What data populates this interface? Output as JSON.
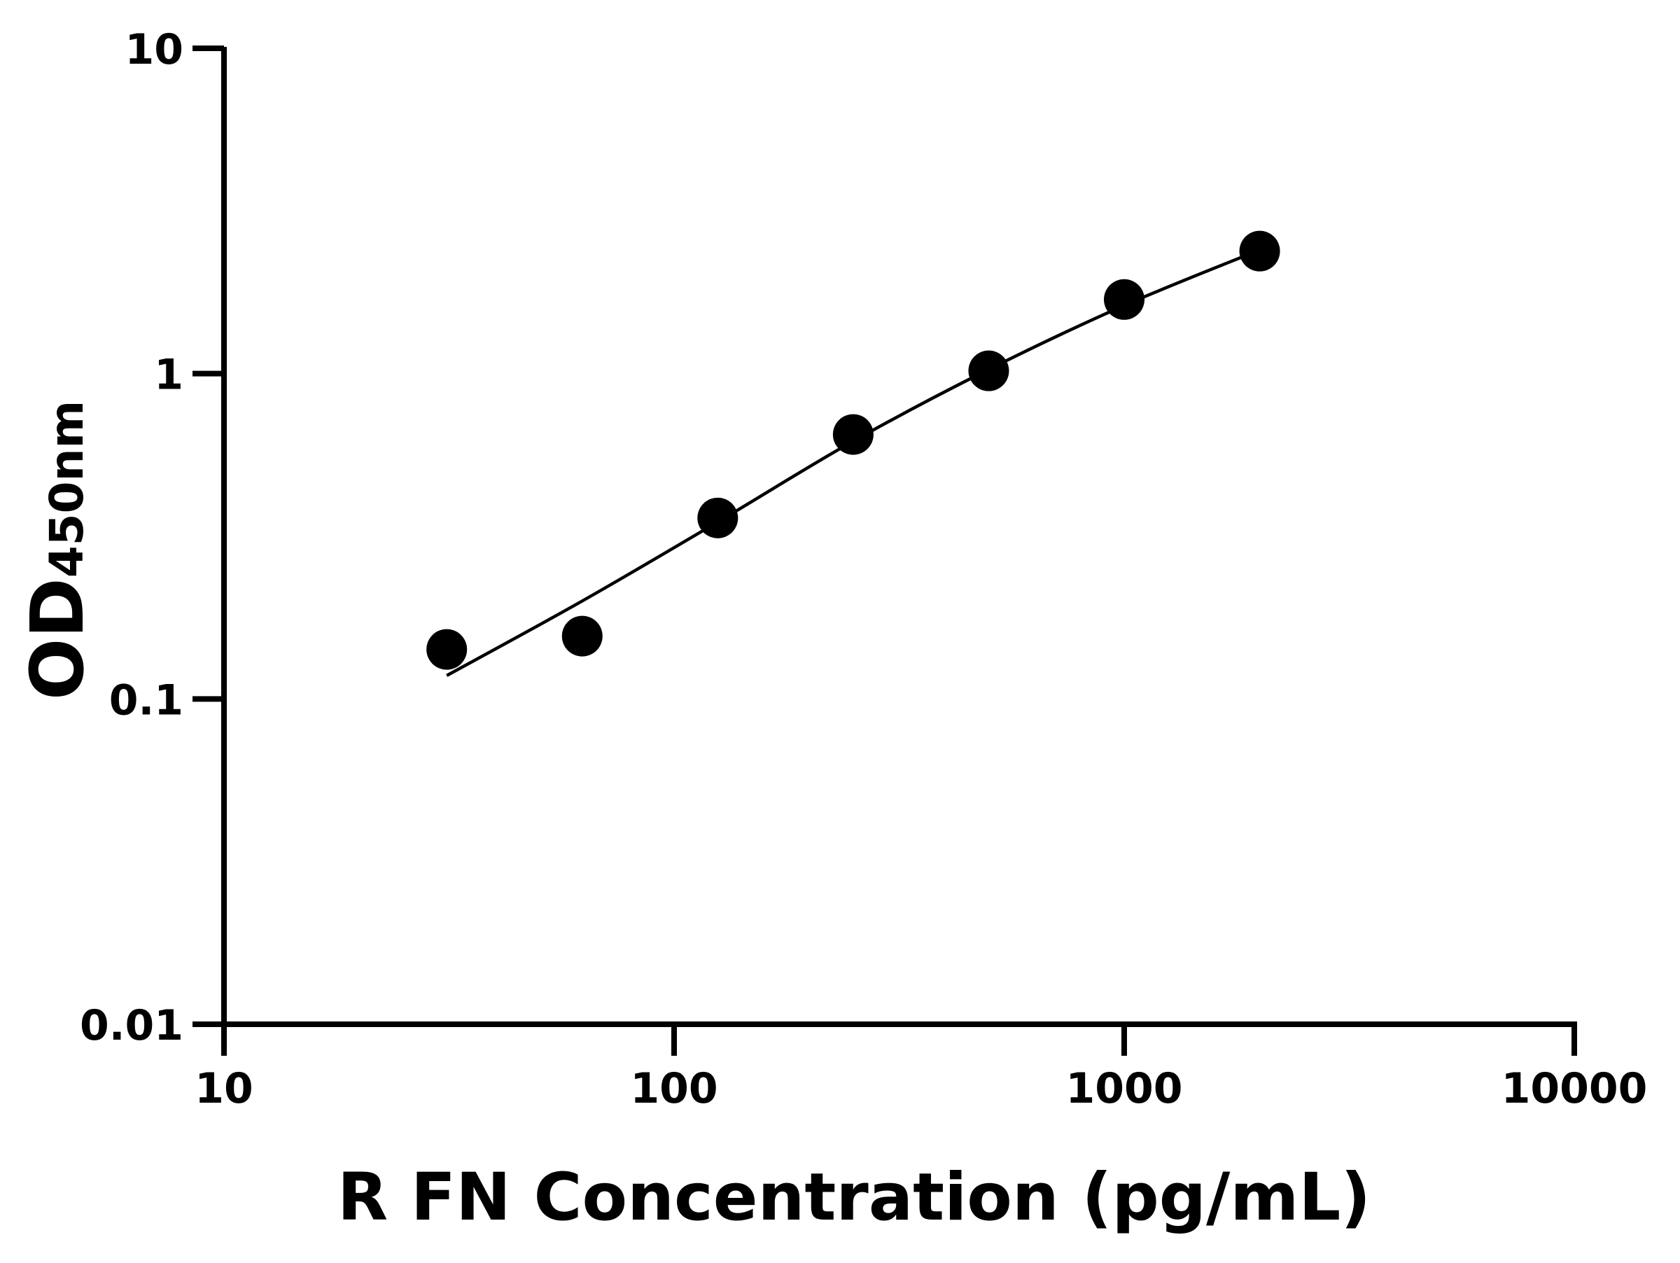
{
  "chart_data": {
    "type": "scatter",
    "title": "",
    "xlabel": "R FN Concentration (pg/mL)",
    "ylabel_main": "OD",
    "ylabel_sub": "450nm",
    "x_scale": "log",
    "y_scale": "log",
    "xlim": [
      10,
      10000
    ],
    "ylim": [
      0.01,
      10
    ],
    "x_ticks": [
      10,
      100,
      1000,
      10000
    ],
    "x_tick_labels": [
      "10",
      "100",
      "1000",
      "10000"
    ],
    "y_ticks": [
      0.01,
      0.1,
      1,
      10
    ],
    "y_tick_labels": [
      "0.01",
      "0.1",
      "1",
      "10"
    ],
    "grid": false,
    "legend": "none",
    "colors": {
      "points": "#000000",
      "curve": "#000000",
      "axes": "#000000"
    },
    "series": [
      {
        "x": [
          31.25,
          62.5,
          125,
          250,
          500,
          1000,
          2000
        ],
        "y": [
          0.142,
          0.156,
          0.36,
          0.65,
          1.02,
          1.69,
          2.38
        ]
      }
    ],
    "fit_curve": {
      "x": [
        31.25,
        62.5,
        125,
        250,
        500,
        1000,
        2000
      ],
      "y": [
        0.118,
        0.2,
        0.35,
        0.62,
        1.03,
        1.62,
        2.4
      ]
    }
  }
}
